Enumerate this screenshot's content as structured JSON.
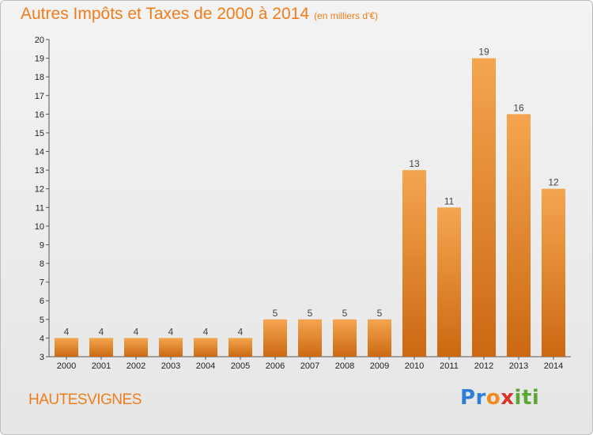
{
  "header": {
    "title": "Autres Impôts et Taxes de 2000 à 2014",
    "unit": "(en milliers d'€)"
  },
  "location": "HAUTESVIGNES",
  "logo": {
    "parts": [
      "Pr",
      "o",
      "x",
      "iti"
    ]
  },
  "colors": {
    "accent": "#ef7d1a",
    "bar_top": "#f5a54f",
    "bar_bottom": "#cc6812"
  },
  "chart_data": {
    "type": "bar",
    "title": "Autres Impôts et Taxes de 2000 à 2014",
    "subtitle": "(en milliers d'€)",
    "xlabel": "",
    "ylabel": "",
    "categories": [
      "2000",
      "2001",
      "2002",
      "2003",
      "2004",
      "2005",
      "2006",
      "2007",
      "2008",
      "2009",
      "2010",
      "2011",
      "2012",
      "2013",
      "2014"
    ],
    "values": [
      4,
      4,
      4,
      4,
      4,
      4,
      5,
      5,
      5,
      5,
      13,
      11,
      19,
      16,
      12
    ],
    "ylim": [
      3,
      20
    ],
    "yticks": [
      3,
      4,
      5,
      6,
      7,
      8,
      9,
      10,
      11,
      12,
      13,
      14,
      15,
      16,
      17,
      18,
      19,
      20
    ],
    "grid": false,
    "legend": "none"
  }
}
